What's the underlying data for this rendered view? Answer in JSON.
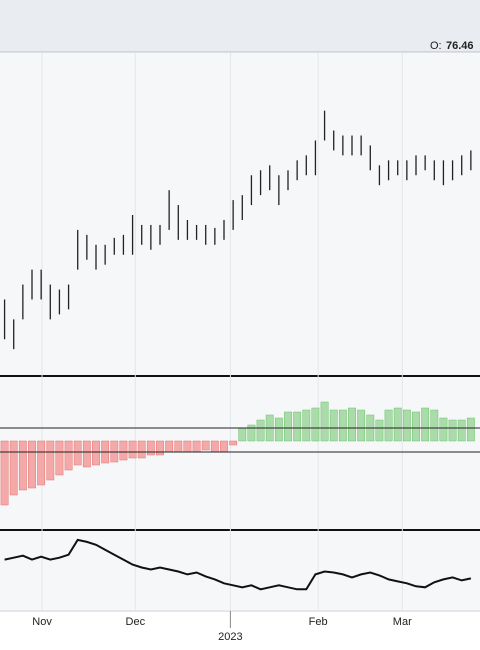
{
  "header": {
    "open_label": "O:",
    "open": 76.46
  },
  "x_axis": {
    "xlim": [
      -0.5,
      52
    ],
    "xticks": [
      {
        "value": 4.1,
        "label": "Nov"
      },
      {
        "value": 14.3,
        "label": "Dec"
      },
      {
        "value": 34.3,
        "label": "Feb"
      },
      {
        "value": 43.5,
        "label": "Mar"
      }
    ],
    "year_ticks": [
      {
        "value": 24.7,
        "label": "2023"
      }
    ]
  },
  "chart_data": [
    {
      "type": "ohlc",
      "color": "#222222",
      "ylim": [
        55,
        87
      ],
      "high": [
        62.5,
        60.5,
        64,
        65.5,
        65.5,
        64,
        63.5,
        64,
        69.5,
        69,
        68,
        68,
        68.7,
        69,
        71,
        70,
        70,
        70,
        73.5,
        72,
        70.5,
        70,
        70,
        69.7,
        70.5,
        72.5,
        73,
        75,
        75.5,
        76,
        75,
        75.5,
        76.5,
        77,
        78.5,
        81.5,
        79.5,
        79,
        79,
        79,
        78,
        76,
        76.5,
        76.5,
        76.5,
        77,
        77,
        76.5,
        76.5,
        76.5,
        77,
        77.5
      ],
      "low": [
        58.5,
        57.5,
        60.5,
        62.5,
        62.5,
        60.5,
        61,
        61.5,
        65.5,
        66.5,
        65.5,
        66,
        67,
        67,
        67,
        68,
        67.5,
        68,
        69.5,
        68.5,
        68.5,
        68.5,
        68,
        68,
        68.5,
        69.5,
        70.5,
        72,
        73,
        73.5,
        72,
        73.5,
        74.5,
        75,
        75,
        78.5,
        77.5,
        77,
        77,
        77,
        75.5,
        74,
        74.5,
        75,
        74.5,
        75,
        75.5,
        74.5,
        74,
        74.5,
        75,
        75.5
      ]
    },
    {
      "type": "bar",
      "up_color": "#a9dca9",
      "down_color": "#f4a9a9",
      "ylim": [
        -8.7,
        6.3
      ],
      "levels": [
        1.3,
        -1.1
      ],
      "values": [
        -6.4,
        -5.4,
        -4.9,
        -4.7,
        -4.4,
        -3.9,
        -3.4,
        -2.9,
        -2.4,
        -2.6,
        -2.4,
        -2.2,
        -2.1,
        -1.9,
        -1.7,
        -1.7,
        -1.4,
        -1.4,
        -1.1,
        -1.1,
        -1.1,
        -1.1,
        -0.9,
        -1.1,
        -1.1,
        -0.4,
        1.3,
        1.6,
        2.1,
        2.6,
        2.3,
        2.9,
        2.9,
        3.1,
        3.3,
        3.9,
        3.1,
        3.1,
        3.3,
        3.1,
        2.6,
        2.1,
        3.1,
        3.3,
        3.1,
        2.9,
        3.3,
        3.1,
        2.3,
        2.1,
        2.1,
        2.3
      ]
    },
    {
      "type": "line",
      "color": "#111111",
      "ylim": [
        0,
        78
      ],
      "values": [
        50,
        52,
        54,
        50,
        53,
        50,
        52,
        55,
        70,
        68,
        65,
        60,
        55,
        50,
        45,
        42,
        40,
        42,
        40,
        38,
        35,
        37,
        33,
        30,
        26,
        24,
        22,
        24,
        20,
        22,
        24,
        22,
        20,
        20,
        35,
        38,
        37,
        35,
        32,
        35,
        37,
        34,
        30,
        28,
        26,
        23,
        22,
        27,
        30,
        32,
        29,
        31
      ]
    }
  ]
}
